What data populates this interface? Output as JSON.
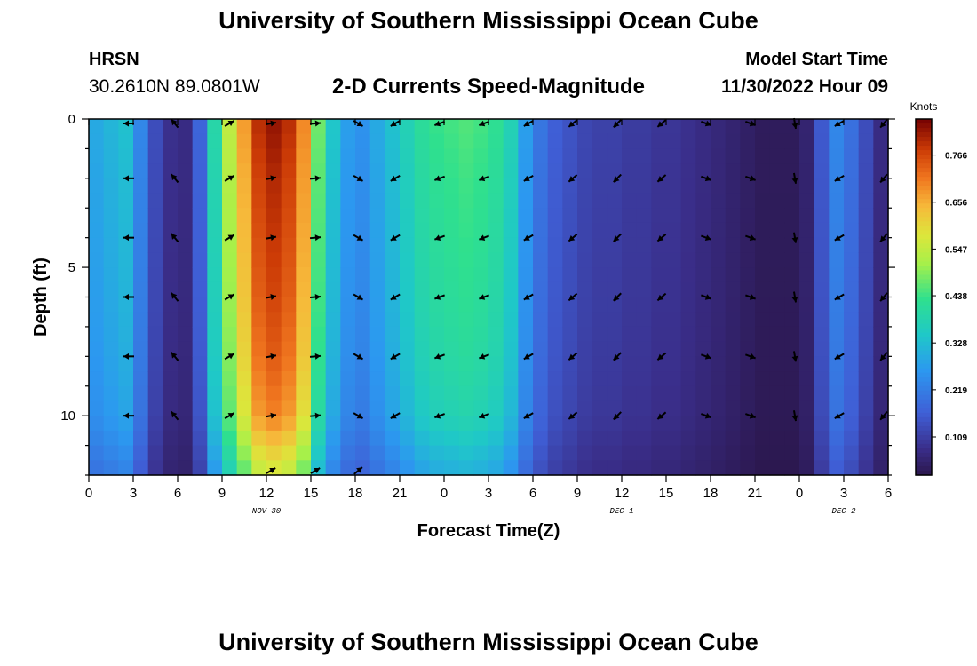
{
  "header": {
    "title": "University of Southern Mississippi Ocean Cube",
    "station": "HRSN",
    "coords": "30.2610N  89.0801W",
    "subtitle": "2-D Currents Speed-Magnitude",
    "model_label": "Model Start Time",
    "model_time": "11/30/2022 Hour 09"
  },
  "footer": {
    "title": "University of Southern Mississippi Ocean Cube"
  },
  "chart_data": {
    "type": "heatmap",
    "xlabel": "Forecast Time(Z)",
    "ylabel": "Depth (ft)",
    "x_tick_labels": [
      "0",
      "3",
      "6",
      "9",
      "12",
      "15",
      "18",
      "21",
      "0",
      "3",
      "6",
      "9",
      "12",
      "15",
      "18",
      "21",
      "0",
      "3",
      "6"
    ],
    "x_range_hours": [
      0,
      54
    ],
    "y_ticks": [
      0,
      5,
      10
    ],
    "y_range_ft": [
      0,
      12
    ],
    "date_labels": [
      {
        "label": "NOV 30",
        "hour": 12
      },
      {
        "label": "DEC 1",
        "hour": 36
      },
      {
        "label": "DEC 2",
        "hour": 51
      }
    ],
    "colorbar": {
      "label": "Knots",
      "ticks": [
        0.766,
        0.656,
        0.547,
        0.438,
        0.328,
        0.219,
        0.109
      ],
      "range": [
        0.02,
        0.85
      ]
    },
    "time_hours": [
      0,
      1,
      2,
      3,
      4,
      5,
      6,
      7,
      8,
      9,
      10,
      11,
      12,
      13,
      14,
      15,
      16,
      17,
      18,
      19,
      20,
      21,
      22,
      23,
      24,
      25,
      26,
      27,
      28,
      29,
      30,
      31,
      32,
      33,
      34,
      35,
      36,
      37,
      38,
      39,
      40,
      41,
      42,
      43,
      44,
      45,
      46,
      47,
      48,
      49,
      50,
      51,
      52,
      53,
      54
    ],
    "speed_knots": [
      0.3,
      0.32,
      0.34,
      0.24,
      0.14,
      0.09,
      0.08,
      0.18,
      0.4,
      0.55,
      0.68,
      0.8,
      0.83,
      0.8,
      0.7,
      0.48,
      0.35,
      0.28,
      0.26,
      0.3,
      0.34,
      0.38,
      0.42,
      0.44,
      0.45,
      0.46,
      0.45,
      0.43,
      0.38,
      0.28,
      0.21,
      0.17,
      0.15,
      0.13,
      0.12,
      0.12,
      0.11,
      0.11,
      0.1,
      0.1,
      0.09,
      0.08,
      0.07,
      0.06,
      0.05,
      0.04,
      0.04,
      0.04,
      0.06,
      0.16,
      0.24,
      0.2,
      0.14,
      0.08,
      0.05
    ],
    "depth_factor_ft": {
      "depths": [
        0,
        2,
        4,
        6,
        8,
        10,
        11.5,
        12
      ],
      "factors": [
        1.0,
        0.97,
        0.95,
        0.93,
        0.9,
        0.85,
        0.72,
        0.68
      ]
    },
    "arrows": {
      "hours": [
        2.7,
        5.8,
        9.5,
        12.3,
        15.3,
        18.2,
        20.7,
        23.7,
        26.7,
        29.7,
        32.7,
        35.7,
        38.7,
        41.7,
        44.7,
        47.7,
        50.7,
        53.7
      ],
      "depths_ft": [
        2,
        4,
        6,
        8,
        10
      ],
      "directions_deg": [
        270,
        320,
        60,
        80,
        85,
        120,
        240,
        250,
        250,
        240,
        230,
        225,
        230,
        110,
        110,
        170,
        240,
        220
      ],
      "surface_directions_deg": [
        270,
        320,
        60,
        80,
        85,
        120,
        240,
        250,
        250,
        240,
        230,
        225,
        230,
        110,
        110,
        170,
        240,
        220
      ],
      "bottom_hours": [
        12.3,
        15.3,
        18.2
      ],
      "bottom_directions_deg": [
        60,
        60,
        50
      ]
    }
  }
}
